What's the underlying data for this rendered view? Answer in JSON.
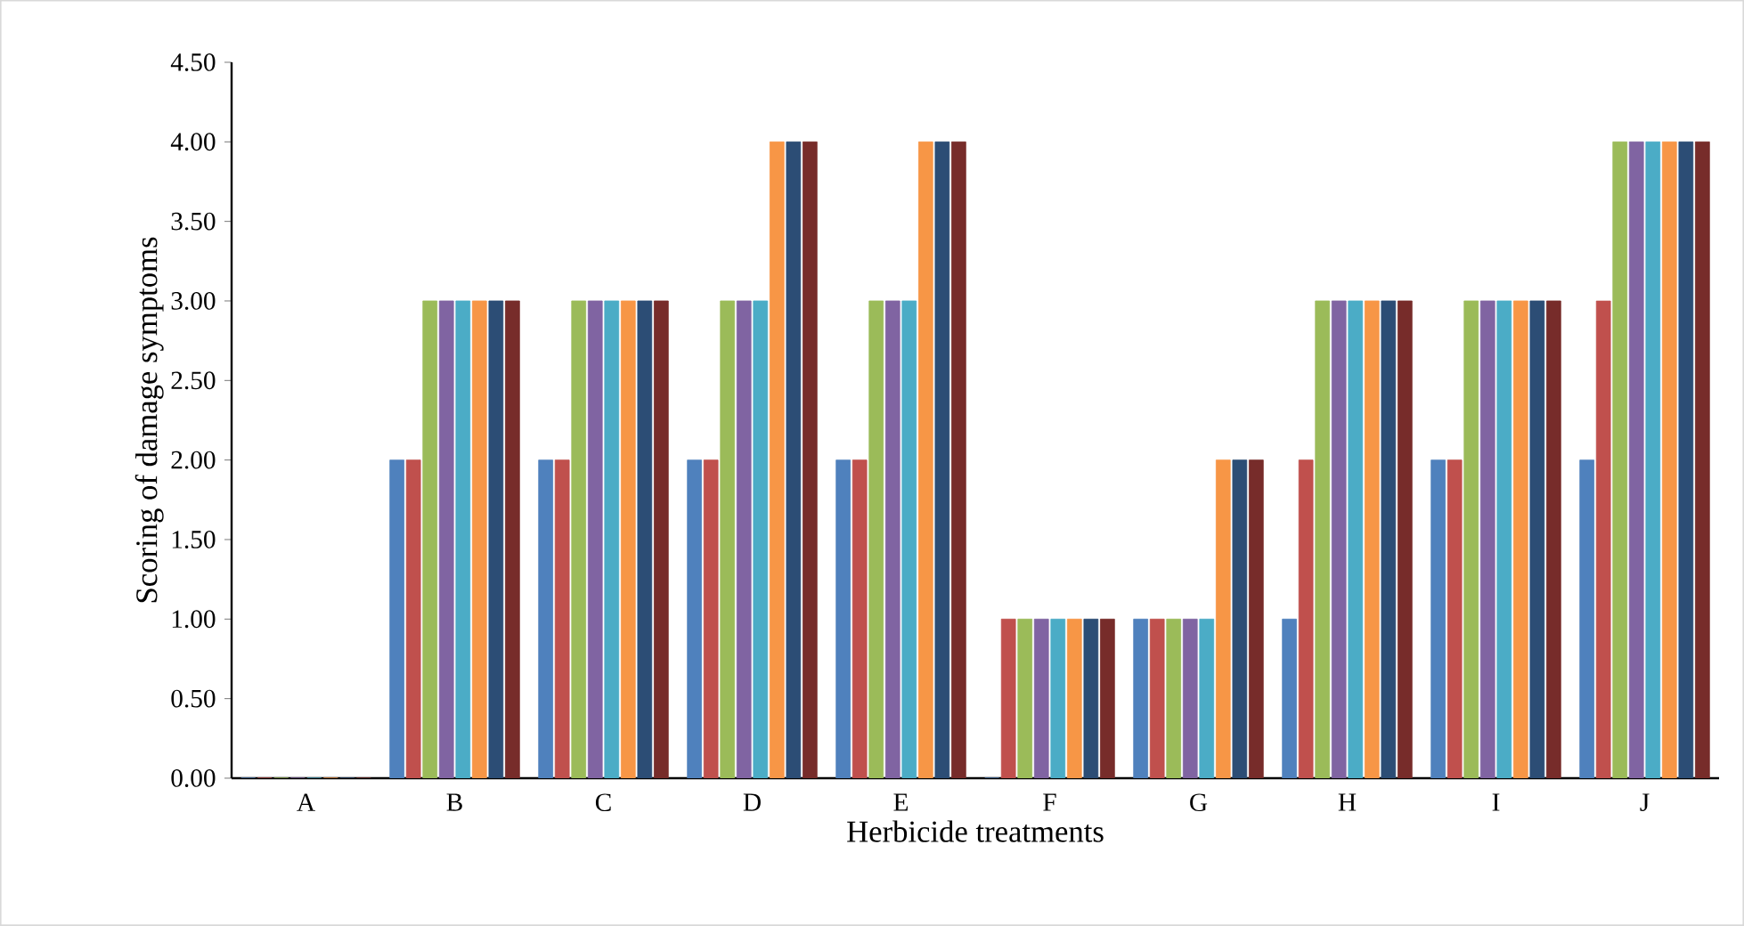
{
  "chart_data": {
    "type": "bar",
    "xlabel": "Herbicide treatments",
    "ylabel": "Scoring of damage symptoms",
    "categories": [
      "A",
      "B",
      "C",
      "D",
      "E",
      "F",
      "G",
      "H",
      "I",
      "J"
    ],
    "series": [
      {
        "color": "#4f81bd",
        "values": [
          0,
          2,
          2,
          2,
          2,
          0,
          1,
          1,
          2,
          2
        ]
      },
      {
        "color": "#c0504d",
        "values": [
          0,
          2,
          2,
          2,
          2,
          1,
          1,
          2,
          2,
          3
        ]
      },
      {
        "color": "#9bbb59",
        "values": [
          0,
          3,
          3,
          3,
          3,
          1,
          1,
          3,
          3,
          4
        ]
      },
      {
        "color": "#8064a2",
        "values": [
          0,
          3,
          3,
          3,
          3,
          1,
          1,
          3,
          3,
          4
        ]
      },
      {
        "color": "#4bacc6",
        "values": [
          0,
          3,
          3,
          3,
          3,
          1,
          1,
          3,
          3,
          4
        ]
      },
      {
        "color": "#f79646",
        "values": [
          0,
          3,
          3,
          4,
          4,
          1,
          2,
          3,
          3,
          4
        ]
      },
      {
        "color": "#2c4d75",
        "values": [
          0,
          3,
          3,
          4,
          4,
          1,
          2,
          3,
          3,
          4
        ]
      },
      {
        "color": "#772c2a",
        "values": [
          0,
          3,
          3,
          4,
          4,
          1,
          2,
          3,
          3,
          4
        ]
      }
    ],
    "ylim": [
      0,
      4.5
    ],
    "yticks": [
      {
        "value": 0,
        "label": "0.00"
      },
      {
        "value": 0.5,
        "label": "0.50"
      },
      {
        "value": 1,
        "label": "1.00"
      },
      {
        "value": 1.5,
        "label": "1.50"
      },
      {
        "value": 2,
        "label": "2.00"
      },
      {
        "value": 2.5,
        "label": "2.50"
      },
      {
        "value": 3,
        "label": "3.00"
      },
      {
        "value": 3.5,
        "label": "3.50"
      },
      {
        "value": 4,
        "label": "4.00"
      },
      {
        "value": 4.5,
        "label": "4.50"
      }
    ],
    "grid": false
  }
}
